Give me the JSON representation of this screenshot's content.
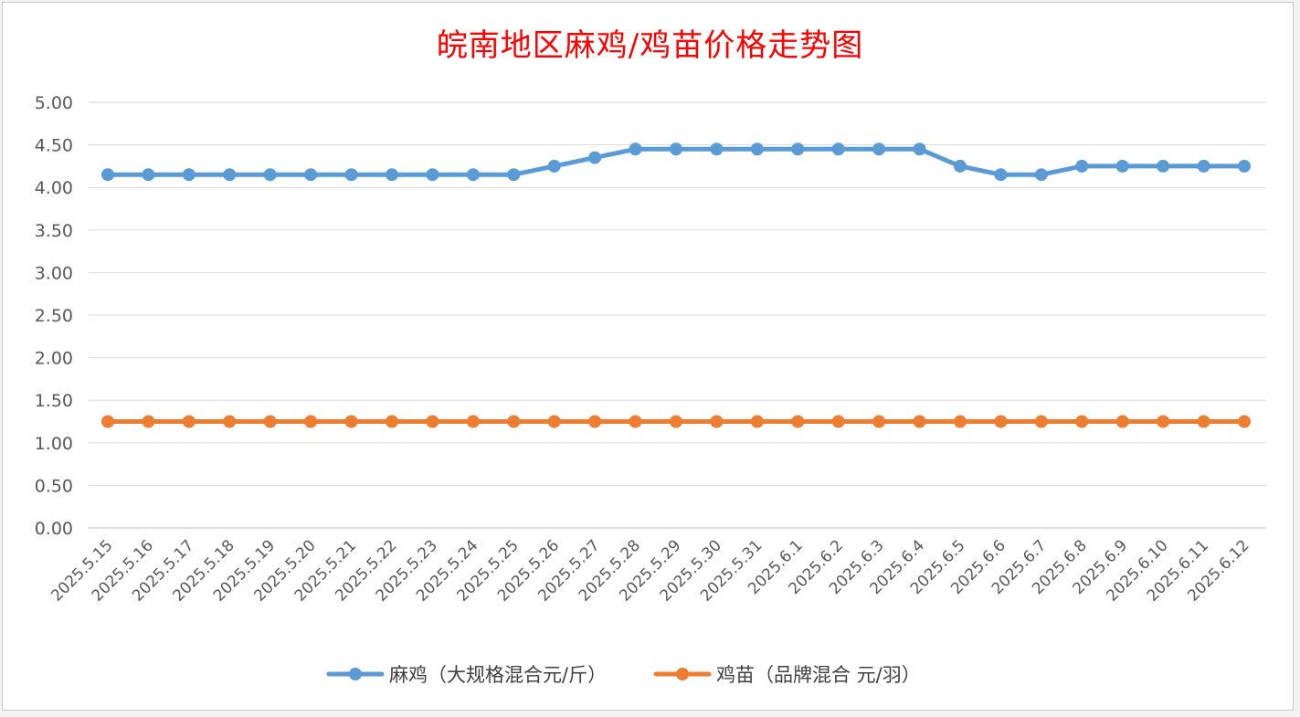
{
  "chart_data": {
    "type": "line",
    "title": "皖南地区麻鸡/鸡苗价格走势图",
    "xlabel": "",
    "ylabel": "",
    "ylim": [
      0,
      5
    ],
    "yticks": [
      "0.00",
      "0.50",
      "1.00",
      "1.50",
      "2.00",
      "2.50",
      "3.00",
      "3.50",
      "4.00",
      "4.50",
      "5.00"
    ],
    "grid": true,
    "legend_position": "bottom",
    "categories": [
      "2025.5.15",
      "2025.5.16",
      "2025.5.17",
      "2025.5.18",
      "2025.5.19",
      "2025.5.20",
      "2025.5.21",
      "2025.5.22",
      "2025.5.23",
      "2025.5.24",
      "2025.5.25",
      "2025.5.26",
      "2025.5.27",
      "2025.5.28",
      "2025.5.29",
      "2025.5.30",
      "2025.5.31",
      "2025.6.1",
      "2025.6.2",
      "2025.6.3",
      "2025.6.4",
      "2025.6.5",
      "2025.6.6",
      "2025.6.7",
      "2025.6.8",
      "2025.6.9",
      "2025.6.10",
      "2025.6.11",
      "2025.6.12"
    ],
    "series": [
      {
        "name": "麻鸡（大规格混合元/斤）",
        "color": "#5b9bd5",
        "values": [
          4.15,
          4.15,
          4.15,
          4.15,
          4.15,
          4.15,
          4.15,
          4.15,
          4.15,
          4.15,
          4.15,
          4.25,
          4.35,
          4.45,
          4.45,
          4.45,
          4.45,
          4.45,
          4.45,
          4.45,
          4.45,
          4.25,
          4.15,
          4.15,
          4.25,
          4.25,
          4.25,
          4.25,
          4.25
        ]
      },
      {
        "name": "鸡苗（品牌混合 元/羽）",
        "color": "#ed7d31",
        "values": [
          1.25,
          1.25,
          1.25,
          1.25,
          1.25,
          1.25,
          1.25,
          1.25,
          1.25,
          1.25,
          1.25,
          1.25,
          1.25,
          1.25,
          1.25,
          1.25,
          1.25,
          1.25,
          1.25,
          1.25,
          1.25,
          1.25,
          1.25,
          1.25,
          1.25,
          1.25,
          1.25,
          1.25,
          1.25
        ]
      }
    ]
  }
}
